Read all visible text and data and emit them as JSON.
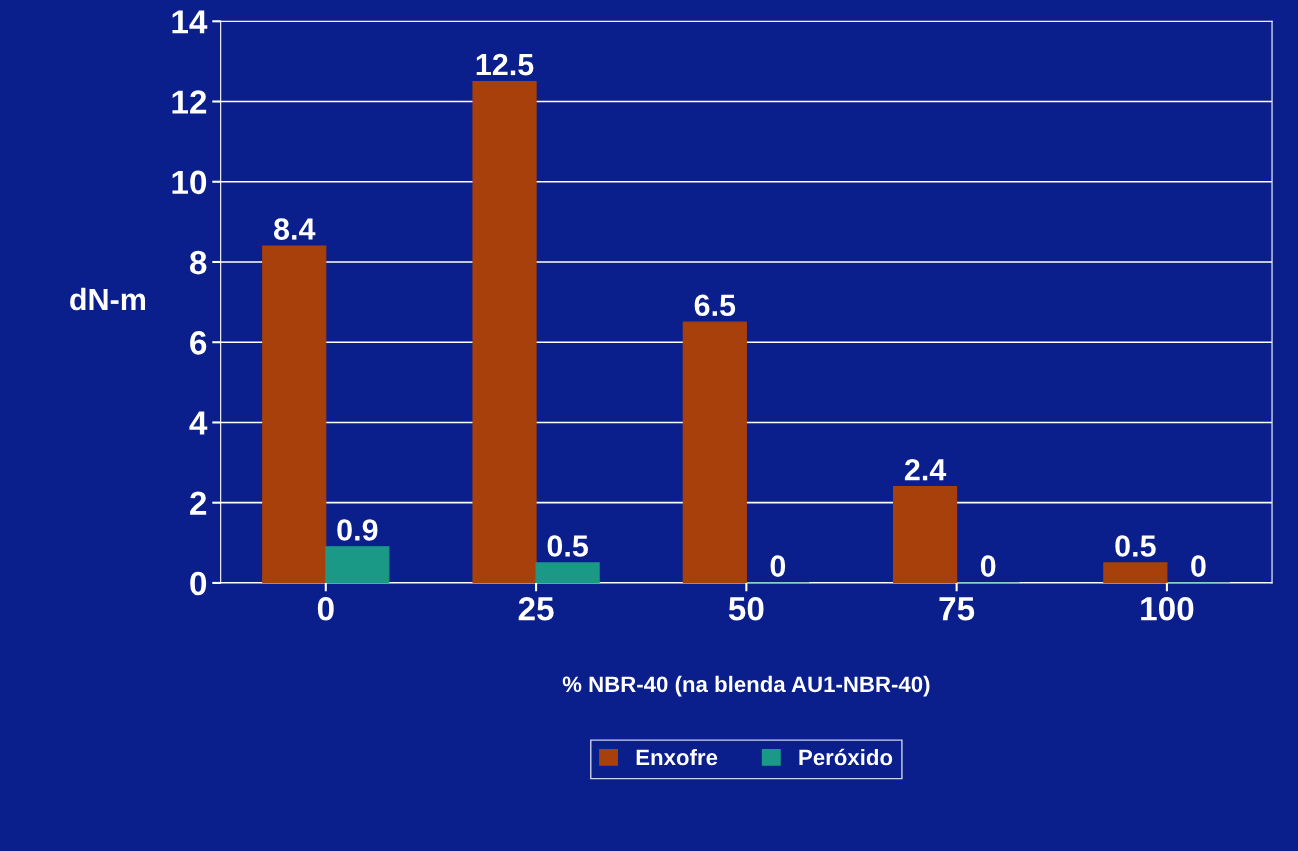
{
  "chart_data": {
    "type": "bar",
    "xlabel": "% NBR-40 (na blenda AU1-NBR-40)",
    "ylabel": "dN-m",
    "categories": [
      "0",
      "25",
      "50",
      "75",
      "100"
    ],
    "series": [
      {
        "name": "Enxofre",
        "color": "#a8400c",
        "values": [
          8.4,
          12.5,
          6.5,
          2.4,
          0.5
        ]
      },
      {
        "name": "Peróxido",
        "color": "#1a9a86",
        "values": [
          0.9,
          0.5,
          0,
          0,
          0
        ]
      }
    ],
    "ylim": [
      0,
      14
    ],
    "yticks": [
      0,
      2,
      4,
      6,
      8,
      10,
      12,
      14
    ],
    "grid": "y",
    "legend": "bottom",
    "data_labels": true
  }
}
